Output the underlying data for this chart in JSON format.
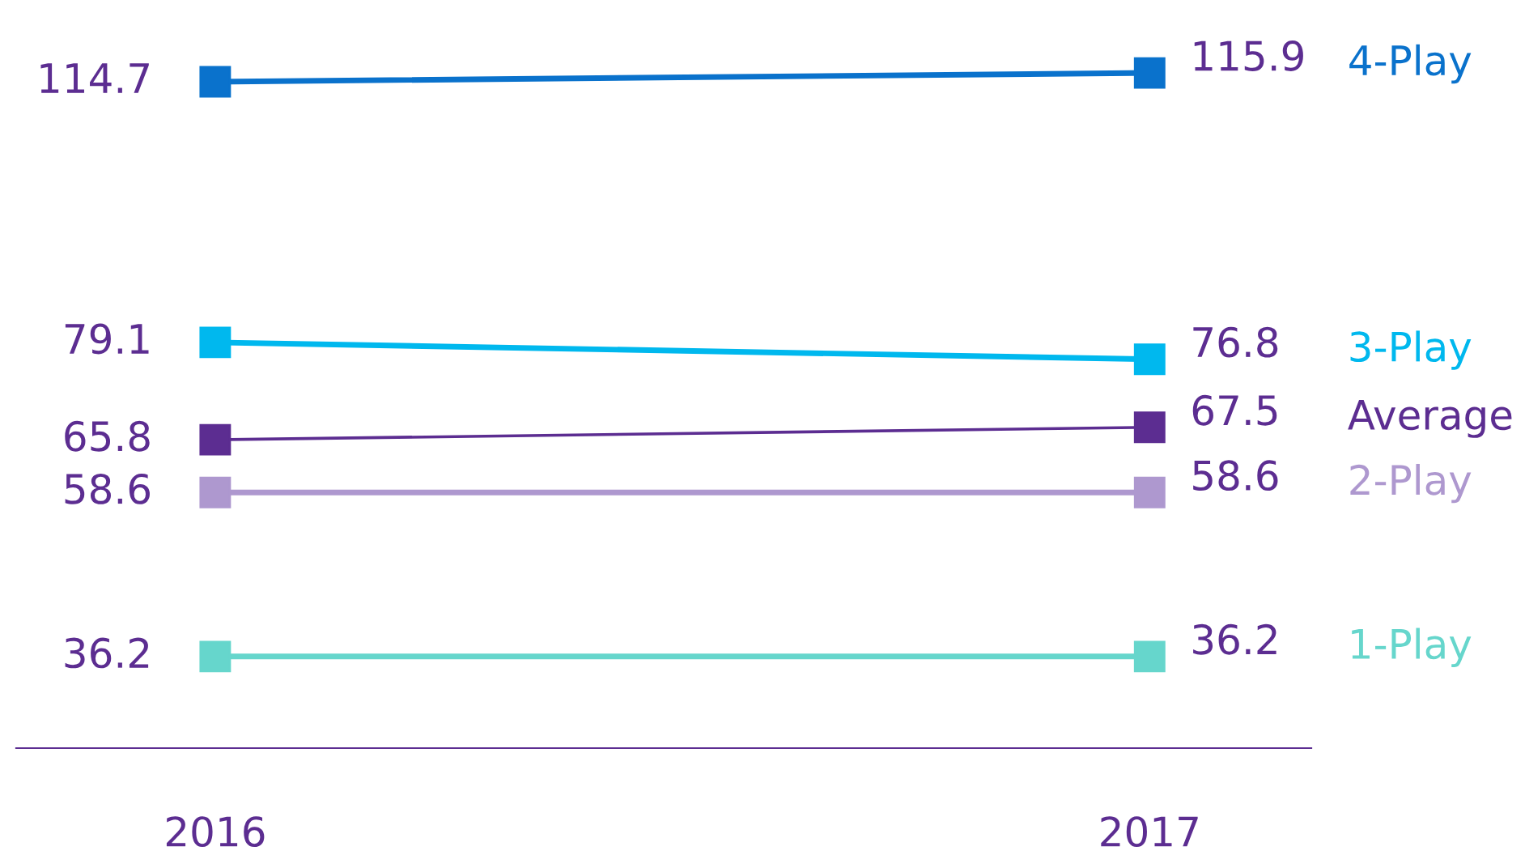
{
  "chart_data": {
    "type": "line",
    "categories": [
      "2016",
      "2017"
    ],
    "series": [
      {
        "name": "4-Play",
        "color": "#0a72cc",
        "values": [
          114.7,
          115.9
        ]
      },
      {
        "name": "3-Play",
        "color": "#00b8ee",
        "values": [
          79.1,
          76.8
        ]
      },
      {
        "name": "Average",
        "color": "#5c2d91",
        "values": [
          65.8,
          67.5
        ]
      },
      {
        "name": "2-Play",
        "color": "#ae98cf",
        "values": [
          58.6,
          58.6
        ]
      },
      {
        "name": "1-Play",
        "color": "#66d6cc",
        "values": [
          36.2,
          36.2
        ]
      }
    ],
    "data_labels": true,
    "marker": "square",
    "line_style": "solid",
    "grid": false,
    "legend": false
  }
}
